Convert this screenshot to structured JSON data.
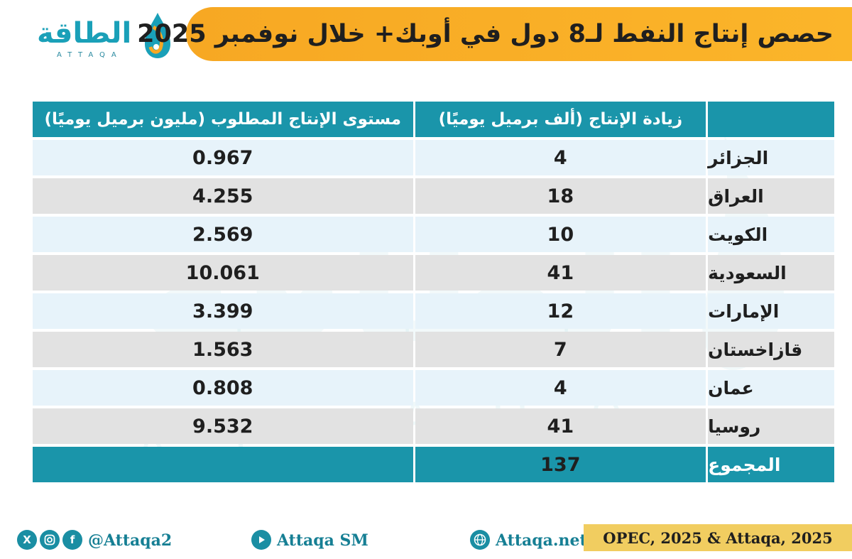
{
  "title": "حصص إنتاج النفط لـ8 دول في أوبك+ خلال نوفمبر 2025",
  "logo": {
    "arabic": "الطاقة",
    "latin": "ATTAQA"
  },
  "watermark": {
    "arabic": "الطاقة",
    "latin": "ATTAQA"
  },
  "table": {
    "headers": {
      "country": "",
      "increase": "زيادة الإنتاج (ألف برميل يوميًا)",
      "level": "مستوى الإنتاج المطلوب (مليون برميل يوميًا)"
    },
    "rows": [
      {
        "country": "الجزائر",
        "increase": "4",
        "level": "0.967"
      },
      {
        "country": "العراق",
        "increase": "18",
        "level": "4.255"
      },
      {
        "country": "الكويت",
        "increase": "10",
        "level": "2.569"
      },
      {
        "country": "السعودية",
        "increase": "41",
        "level": "10.061"
      },
      {
        "country": "الإمارات",
        "increase": "12",
        "level": "3.399"
      },
      {
        "country": "قازاخستان",
        "increase": "7",
        "level": "1.563"
      },
      {
        "country": "عمان",
        "increase": "4",
        "level": "0.808"
      },
      {
        "country": "روسيا",
        "increase": "41",
        "level": "9.532"
      }
    ],
    "total": {
      "label": "المجموع",
      "increase": "137",
      "level": ""
    }
  },
  "footer": {
    "social_handle": "@Attaqa2",
    "youtube": "Attaqa SM",
    "website": "Attaqa.net",
    "source": "OPEC, 2025 & Attaqa, 2025",
    "icons": [
      "x-icon",
      "instagram-icon",
      "facebook-icon",
      "youtube-icon",
      "globe-icon"
    ]
  },
  "colors": {
    "teal": "#1a95aa",
    "orange": "#f7a823",
    "row_light": "#e7f3fa",
    "row_gray": "#e2e2e2",
    "source_bg": "#f1cd60"
  }
}
